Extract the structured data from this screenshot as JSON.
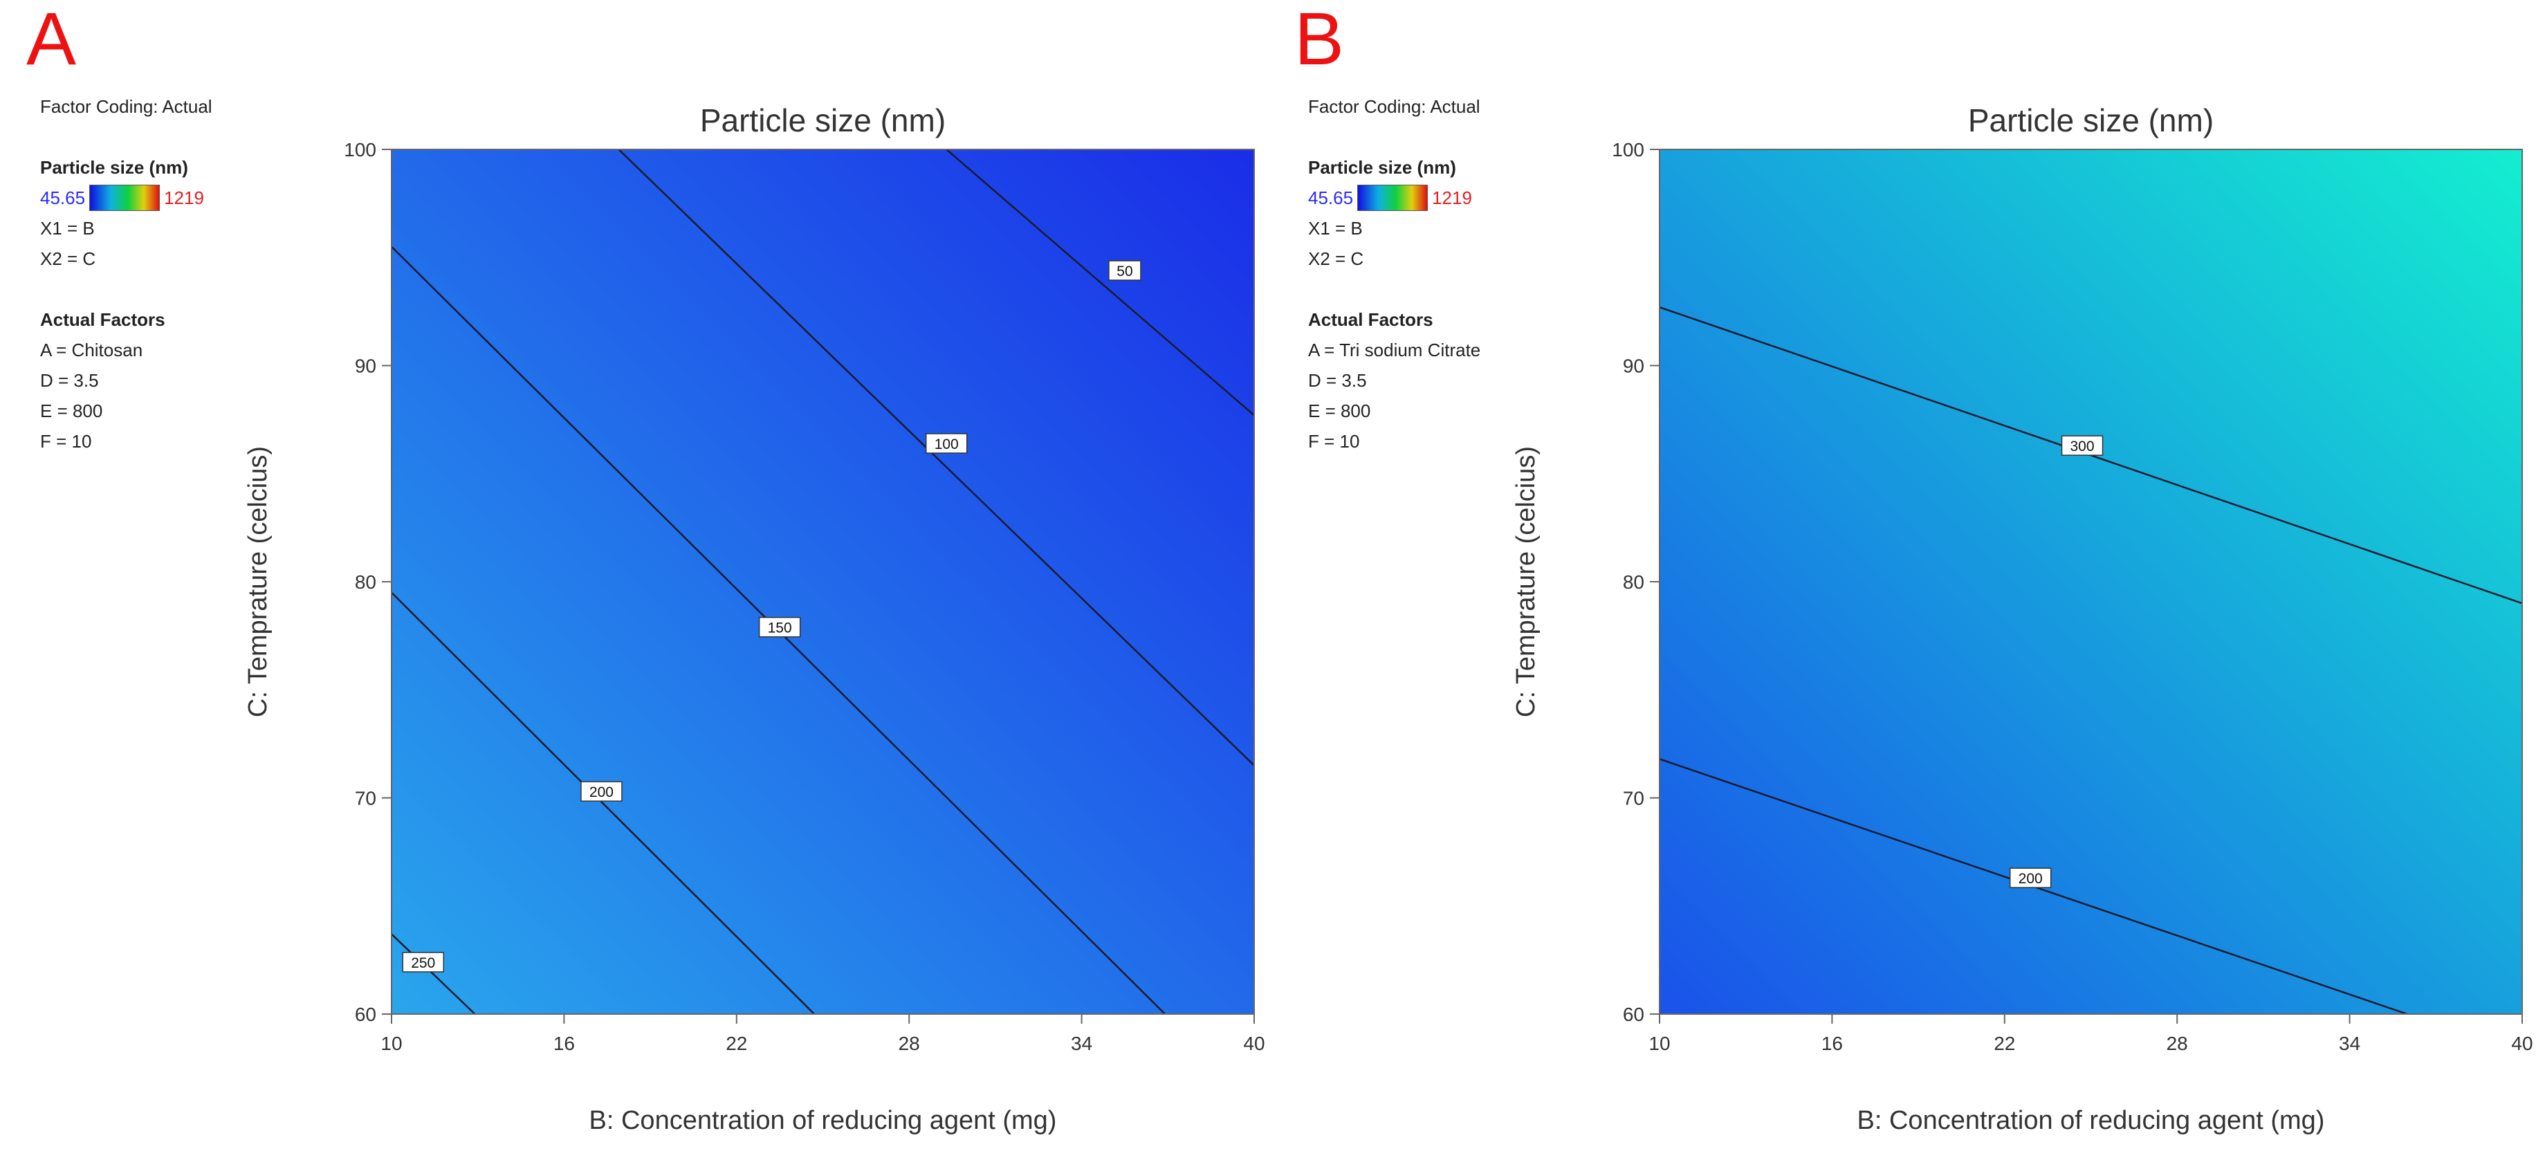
{
  "chart_data": [
    {
      "type": "contour",
      "panel_label": "A",
      "title": "Particle size (nm)",
      "xlabel": "B: Concentration of reducing agent (mg)",
      "ylabel": "C: Temprature (celcius)",
      "xlim": [
        10,
        40
      ],
      "ylim": [
        60,
        100
      ],
      "xticks": [
        "10",
        "16",
        "22",
        "28",
        "34",
        "40"
      ],
      "yticks": [
        "60",
        "70",
        "80",
        "90",
        "100"
      ],
      "contours": [
        {
          "level": "250",
          "line": [
            [
              10,
              63.7
            ],
            [
              12.9,
              60
            ]
          ],
          "label_at": [
            11.1,
            62.4
          ]
        },
        {
          "level": "200",
          "line": [
            [
              10,
              79.5
            ],
            [
              24.7,
              60
            ]
          ],
          "label_at": [
            17.3,
            70.3
          ]
        },
        {
          "level": "150",
          "line": [
            [
              10,
              95.5
            ],
            [
              36.9,
              60
            ]
          ],
          "label_at": [
            23.5,
            77.9
          ]
        },
        {
          "level": "100",
          "line": [
            [
              17.9,
              100
            ],
            [
              40,
              71.5
            ]
          ],
          "label_at": [
            29.3,
            86.4
          ]
        },
        {
          "level": "50",
          "line": [
            [
              29.3,
              100
            ],
            [
              40,
              87.7
            ]
          ],
          "label_at": [
            35.5,
            94.4
          ]
        }
      ],
      "fill_gradient": {
        "low_corner": "#1a2de8",
        "high_corner": "#29a6ec"
      },
      "legend": {
        "factor_coding": "Factor Coding: Actual",
        "response_title": "Particle size (nm)",
        "min": "45.65",
        "max": "1219",
        "x1": "X1 = B",
        "x2": "X2 = C",
        "actual_factors_title": "Actual Factors",
        "factors": [
          "A = Chitosan",
          "D = 3.5",
          "E = 800",
          "F = 10"
        ]
      }
    },
    {
      "type": "contour",
      "panel_label": "B",
      "title": "Particle size (nm)",
      "xlabel": "B: Concentration of reducing agent (mg)",
      "ylabel": "C: Temprature (celcius)",
      "xlim": [
        10,
        40
      ],
      "ylim": [
        60,
        100
      ],
      "xticks": [
        "10",
        "16",
        "22",
        "28",
        "34",
        "40"
      ],
      "yticks": [
        "60",
        "70",
        "80",
        "90",
        "100"
      ],
      "contours": [
        {
          "level": "300",
          "line": [
            [
              10,
              92.7
            ],
            [
              40,
              79
            ]
          ],
          "label_at": [
            24.7,
            86.3
          ]
        },
        {
          "level": "200",
          "line": [
            [
              10,
              71.8
            ],
            [
              36,
              60
            ]
          ],
          "label_at": [
            22.9,
            66.3
          ]
        }
      ],
      "fill_gradient": {
        "low_corner": "#1a52ea",
        "high_corner": "#14eed0"
      },
      "legend": {
        "factor_coding": "Factor Coding: Actual",
        "response_title": "Particle size (nm)",
        "min": "45.65",
        "max": "1219",
        "x1": "X1 = B",
        "x2": "X2 = C",
        "actual_factors_title": "Actual Factors",
        "factors": [
          "A = Tri sodium Citrate",
          "D = 3.5",
          "E = 800",
          "F = 10"
        ]
      }
    }
  ]
}
